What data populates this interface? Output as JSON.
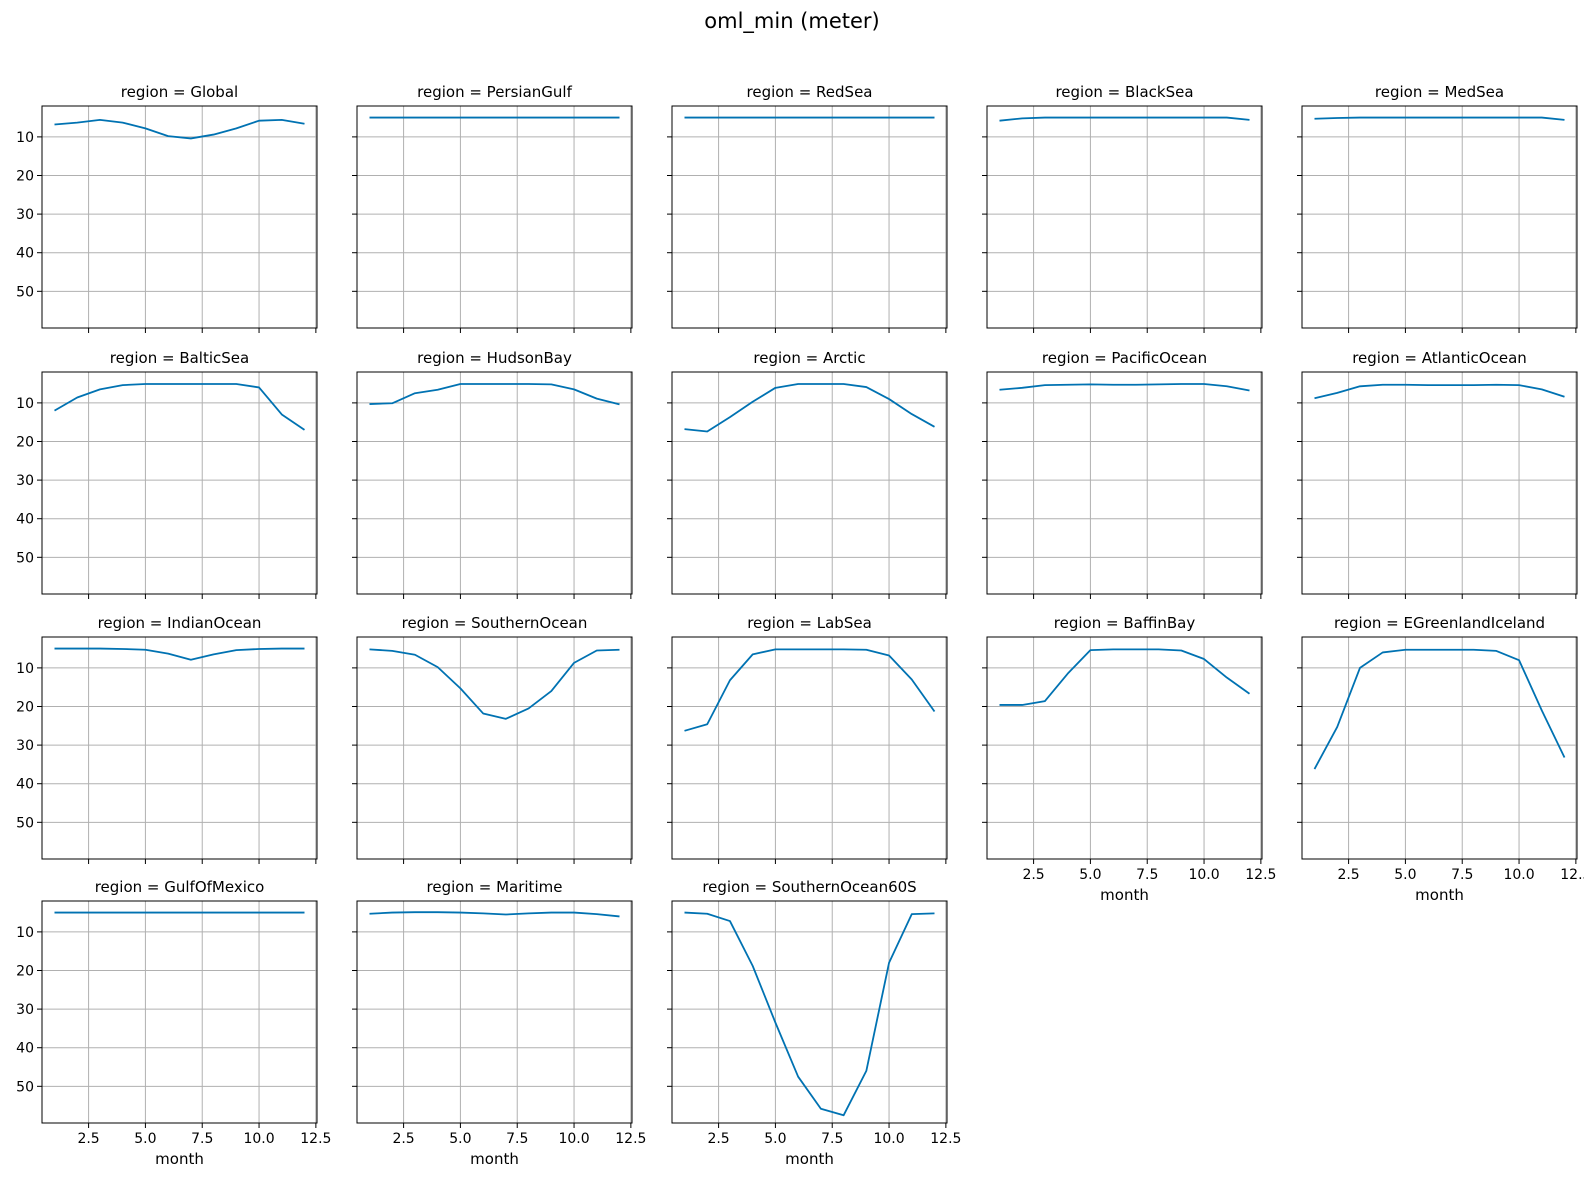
{
  "chart_data": {
    "type": "line",
    "title": "oml_min (meter)",
    "layout": {
      "columns": 5,
      "rows": 4,
      "sharex": true,
      "sharey": true
    },
    "xlabel": "month",
    "ylabel": "",
    "xlim": [
      0.45,
      12.55
    ],
    "ylim": [
      59.5,
      2
    ],
    "y_inverted": true,
    "xticks": [
      2.5,
      5.0,
      7.5,
      10.0,
      12.5
    ],
    "xtick_labels": [
      "2.5",
      "5.0",
      "7.5",
      "10.0",
      "12.5"
    ],
    "yticks": [
      10,
      20,
      30,
      40,
      50
    ],
    "ytick_labels": [
      "10",
      "20",
      "30",
      "40",
      "50"
    ],
    "grid": true,
    "line_color": "#0072b2",
    "x": [
      1,
      2,
      3,
      4,
      5,
      6,
      7,
      8,
      9,
      10,
      11,
      12
    ],
    "panels": [
      {
        "title": "region = Global",
        "values": [
          6.8,
          6.3,
          5.6,
          6.3,
          7.8,
          9.8,
          10.4,
          9.4,
          7.8,
          5.8,
          5.6,
          6.6
        ]
      },
      {
        "title": "region = PersianGulf",
        "values": [
          5.0,
          5.0,
          5.0,
          5.0,
          5.0,
          5.0,
          5.0,
          5.0,
          5.0,
          5.0,
          5.0,
          5.0
        ]
      },
      {
        "title": "region = RedSea",
        "values": [
          5.0,
          5.0,
          5.0,
          5.0,
          5.0,
          5.0,
          5.0,
          5.0,
          5.0,
          5.0,
          5.0,
          5.0
        ]
      },
      {
        "title": "region = BlackSea",
        "values": [
          5.8,
          5.2,
          5.0,
          5.0,
          5.0,
          5.0,
          5.0,
          5.0,
          5.0,
          5.0,
          5.0,
          5.6
        ]
      },
      {
        "title": "region = MedSea",
        "values": [
          5.3,
          5.1,
          5.0,
          5.0,
          5.0,
          5.0,
          5.0,
          5.0,
          5.0,
          5.0,
          5.0,
          5.6
        ]
      },
      {
        "title": "region = BalticSea",
        "values": [
          12.0,
          8.6,
          6.5,
          5.4,
          5.1,
          5.1,
          5.1,
          5.1,
          5.1,
          6.0,
          13.0,
          17.0
        ]
      },
      {
        "title": "region = HudsonBay",
        "values": [
          10.3,
          10.1,
          7.5,
          6.6,
          5.1,
          5.1,
          5.1,
          5.1,
          5.2,
          6.5,
          8.9,
          10.4
        ]
      },
      {
        "title": "region = Arctic",
        "values": [
          16.8,
          17.4,
          13.7,
          9.7,
          6.1,
          5.1,
          5.1,
          5.1,
          5.9,
          9.0,
          12.9,
          16.2
        ]
      },
      {
        "title": "region = PacificOcean",
        "values": [
          6.6,
          6.1,
          5.4,
          5.3,
          5.2,
          5.3,
          5.3,
          5.2,
          5.1,
          5.1,
          5.7,
          6.8
        ]
      },
      {
        "title": "region = AtlanticOcean",
        "values": [
          8.8,
          7.4,
          5.7,
          5.3,
          5.3,
          5.4,
          5.4,
          5.4,
          5.3,
          5.4,
          6.5,
          8.4
        ]
      },
      {
        "title": "region = IndianOcean",
        "values": [
          5.0,
          5.0,
          5.0,
          5.1,
          5.3,
          6.3,
          7.9,
          6.5,
          5.4,
          5.1,
          5.0,
          5.0
        ]
      },
      {
        "title": "region = SouthernOcean",
        "values": [
          5.2,
          5.6,
          6.6,
          9.8,
          15.3,
          21.8,
          23.2,
          20.5,
          16.0,
          8.7,
          5.5,
          5.3
        ]
      },
      {
        "title": "region = LabSea",
        "values": [
          26.3,
          24.6,
          13.2,
          6.5,
          5.2,
          5.2,
          5.2,
          5.2,
          5.3,
          6.8,
          13.0,
          21.3
        ]
      },
      {
        "title": "region = BaffinBay",
        "values": [
          19.6,
          19.6,
          18.6,
          11.5,
          5.4,
          5.2,
          5.2,
          5.2,
          5.5,
          7.7,
          12.5,
          16.7
        ]
      },
      {
        "title": "region = EGreenlandIceland",
        "values": [
          36.2,
          25.3,
          10.0,
          6.0,
          5.3,
          5.3,
          5.3,
          5.3,
          5.6,
          8.0,
          21.0,
          33.2
        ]
      },
      {
        "title": "region = GulfOfMexico",
        "values": [
          5.0,
          5.0,
          5.0,
          5.0,
          5.0,
          5.0,
          5.0,
          5.0,
          5.0,
          5.0,
          5.0,
          5.0
        ]
      },
      {
        "title": "region = Maritime",
        "values": [
          5.3,
          5.0,
          4.9,
          4.9,
          5.0,
          5.2,
          5.5,
          5.2,
          5.0,
          5.0,
          5.4,
          6.0
        ]
      },
      {
        "title": "region = SouthernOcean60S",
        "values": [
          5.0,
          5.3,
          7.2,
          18.8,
          33.5,
          47.5,
          55.8,
          57.5,
          46.0,
          18.0,
          5.4,
          5.2
        ]
      }
    ]
  }
}
